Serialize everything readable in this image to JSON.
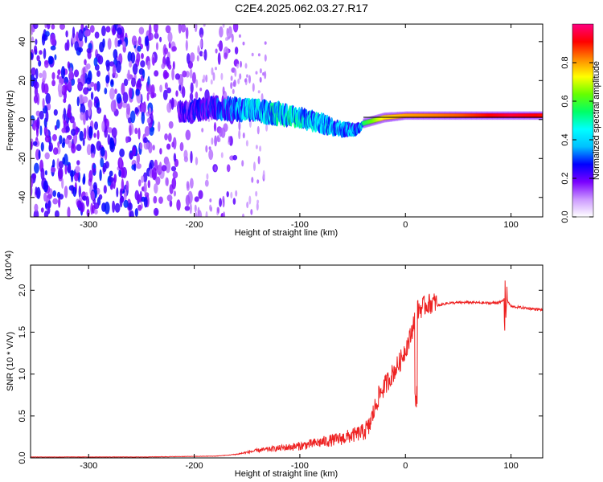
{
  "title": "C2E4.2025.062.03.27.R17",
  "chart_data": [
    {
      "type": "heatmap",
      "xlabel": "Height of straight line (km)",
      "ylabel": "Frequency (Hz)",
      "xlim": [
        -355,
        130
      ],
      "ylim": [
        -50,
        49
      ],
      "xticks": [
        -300,
        -200,
        -100,
        0,
        100
      ],
      "yticks": [
        -40,
        -20,
        0,
        20,
        40
      ],
      "colorbar": {
        "label": "Normalized spectral amplitude",
        "range": [
          0,
          1
        ],
        "ticks": [
          "0.0",
          "0.2",
          "0.4",
          "0.6",
          "0.8"
        ],
        "colors": [
          "#ffffff",
          "#cc99ff",
          "#7a00ff",
          "#0000ff",
          "#00c0ff",
          "#00ffff",
          "#00ff66",
          "#66ff00",
          "#ffff00",
          "#ff8800",
          "#ff0000",
          "#ff0080"
        ]
      },
      "signal_track": {
        "x": [
          -215,
          -180,
          -150,
          -120,
          -100,
          -80,
          -60,
          -45,
          -40,
          -20,
          0,
          50,
          100,
          130
        ],
        "freq": [
          4,
          6,
          5,
          3,
          1,
          -2,
          -5,
          -5,
          -2,
          1,
          2,
          2,
          2,
          2
        ],
        "bandwidth": [
          8,
          9,
          9,
          9,
          8,
          8,
          6,
          5,
          3,
          3,
          2.5,
          2.5,
          2.5,
          2.5
        ],
        "amplitude": [
          0.25,
          0.3,
          0.45,
          0.5,
          0.5,
          0.45,
          0.45,
          0.4,
          0.55,
          0.75,
          0.8,
          0.85,
          0.95,
          0.9
        ]
      },
      "noise_region": {
        "x": [
          -355,
          -160
        ],
        "amplitude": [
          0.1,
          0.3
        ]
      }
    },
    {
      "type": "line",
      "xlabel": "Height of straight line (km)",
      "ylabel": "SNR (10 * V/V)",
      "multiplier": "(x10^4)",
      "xlim": [
        -355,
        130
      ],
      "ylim": [
        0,
        2.3
      ],
      "xticks": [
        -300,
        -200,
        -100,
        0,
        100
      ],
      "yticks": [
        "0.0",
        "0.5",
        "1.0",
        "1.5",
        "2.0"
      ],
      "color": "#ee2222",
      "series": [
        {
          "x": [
            -355,
            -250,
            -180,
            -160,
            -140,
            -120,
            -100,
            -80,
            -60,
            -45,
            -35,
            -25,
            -15,
            -5,
            5,
            10,
            20,
            40,
            60,
            80,
            90,
            95,
            100,
            115,
            130
          ],
          "y": [
            0.01,
            0.01,
            0.02,
            0.04,
            0.08,
            0.1,
            0.12,
            0.16,
            0.2,
            0.25,
            0.3,
            0.7,
            0.9,
            1.1,
            1.4,
            1.7,
            1.78,
            1.84,
            1.85,
            1.84,
            1.85,
            1.9,
            1.8,
            1.78,
            1.76
          ]
        }
      ]
    }
  ]
}
